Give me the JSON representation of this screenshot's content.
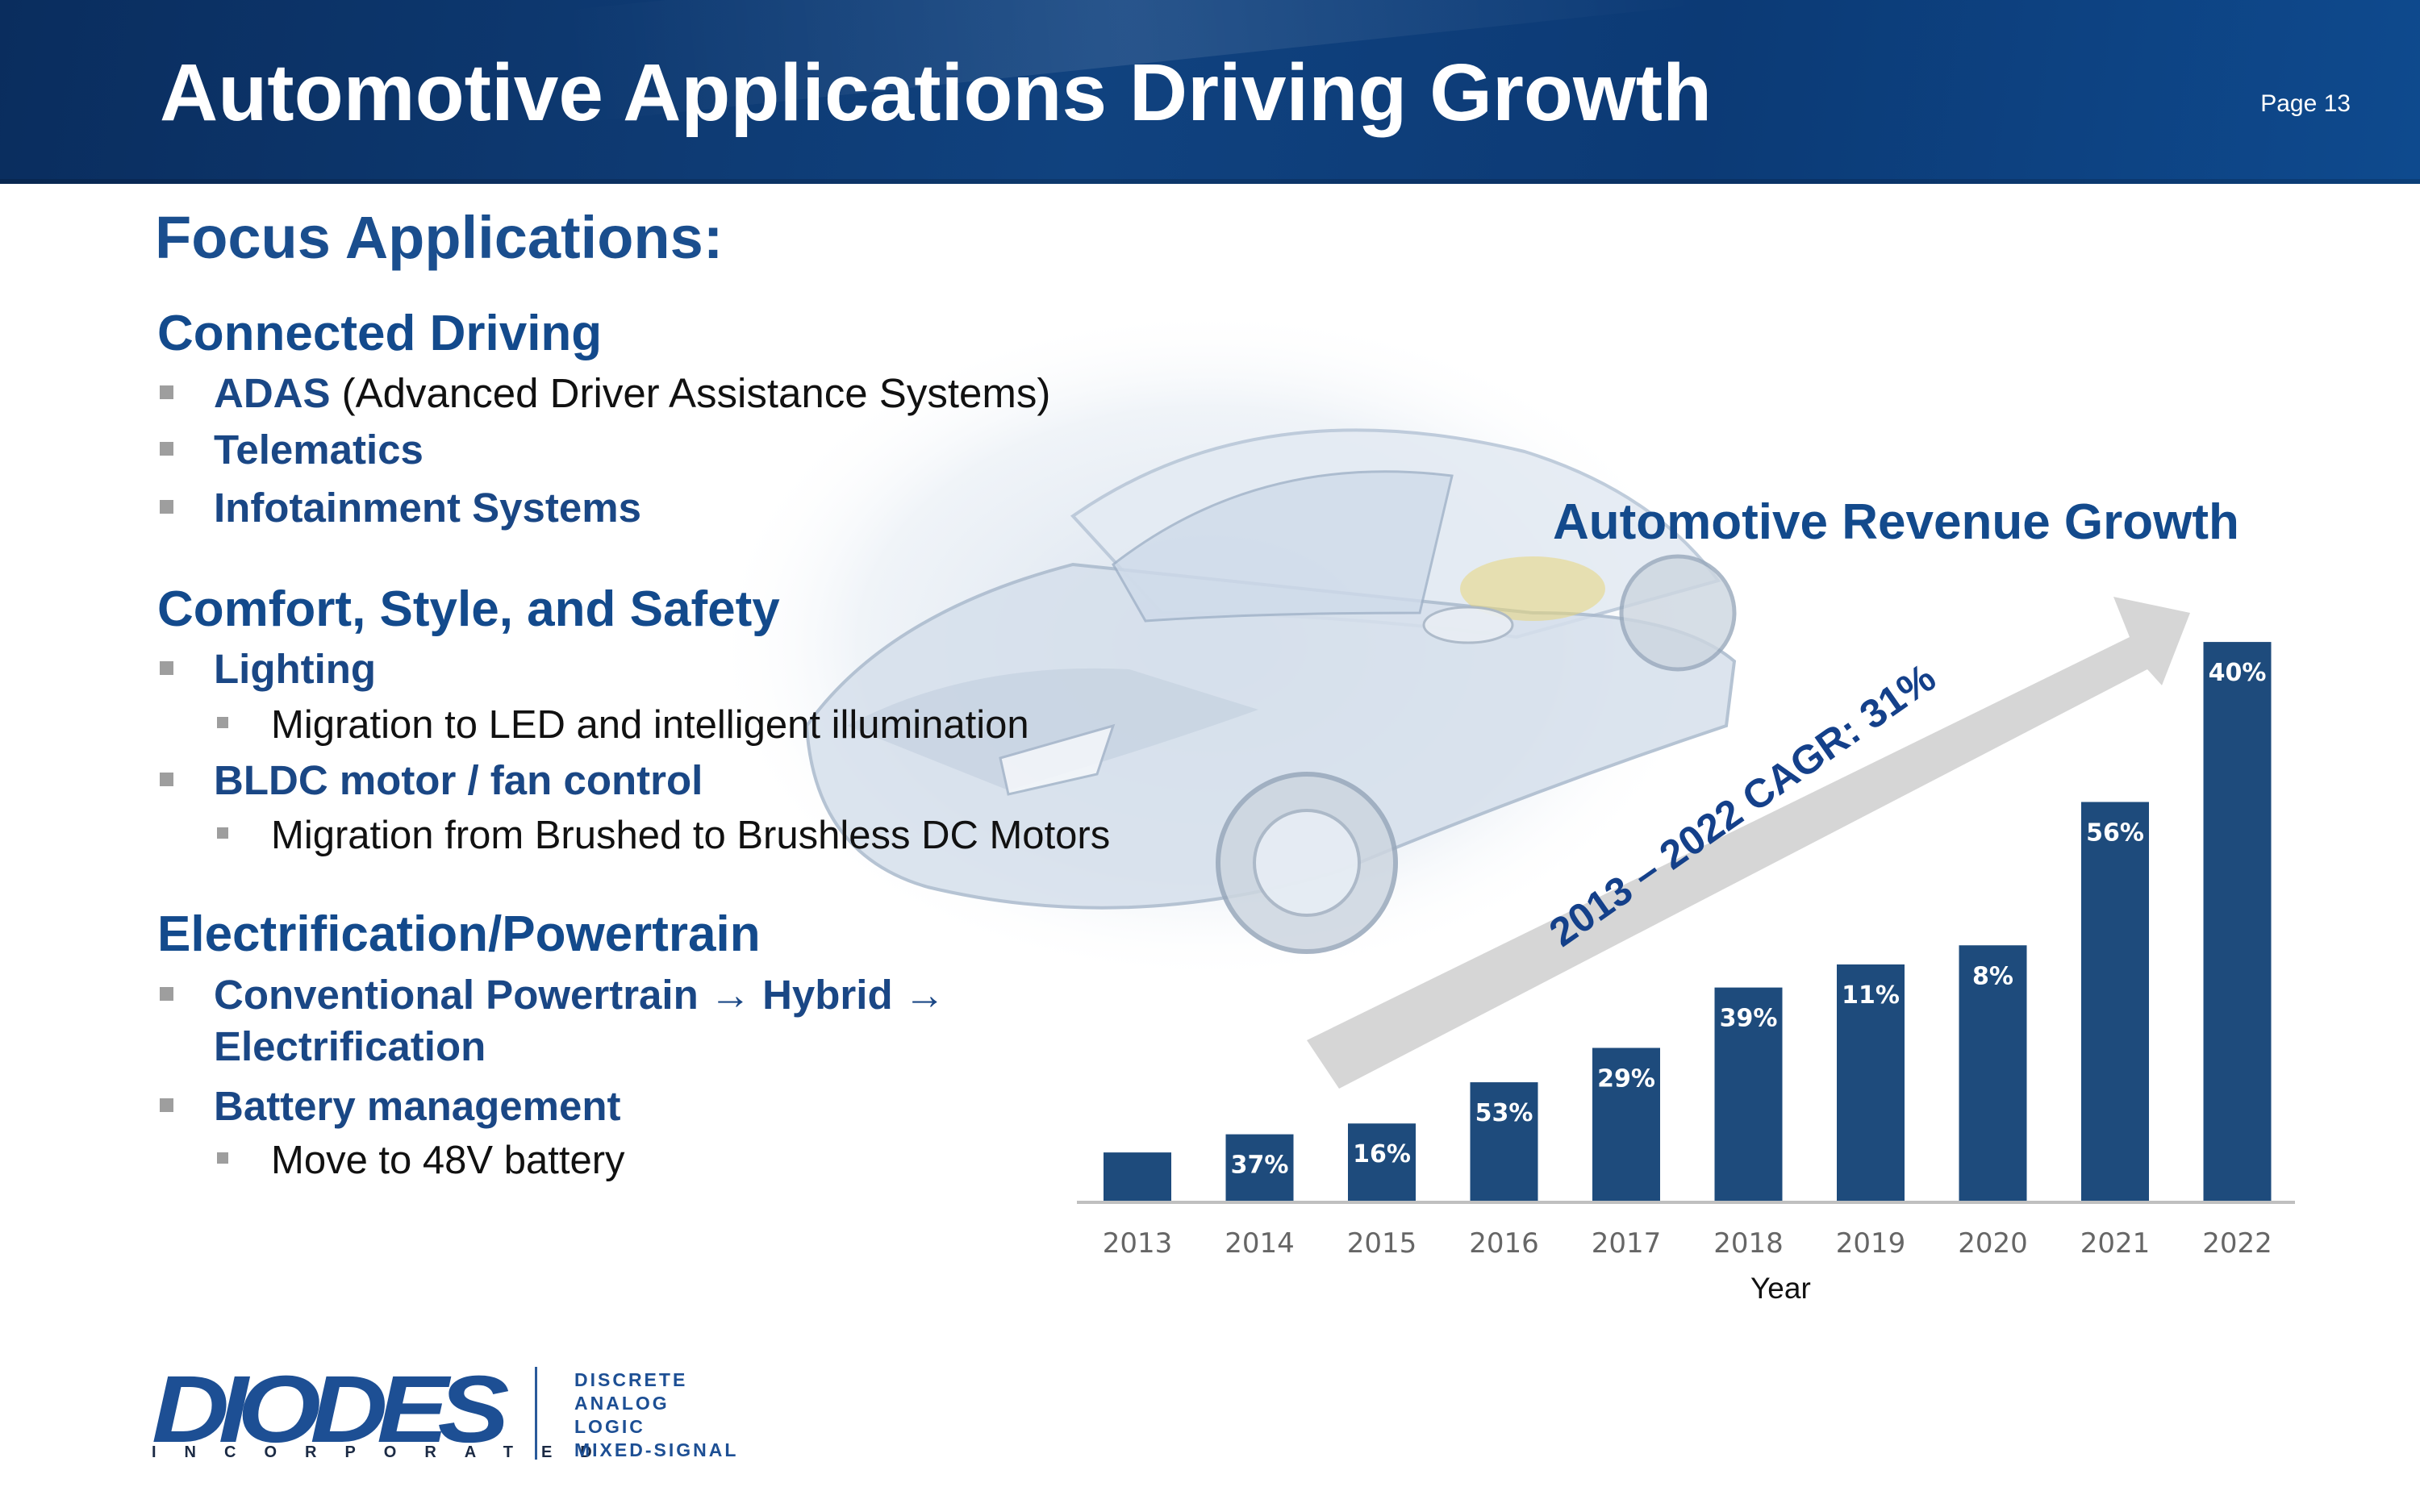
{
  "header": {
    "title": "Automotive Applications Driving Growth",
    "page": "Page 13"
  },
  "left": {
    "focus_title": "Focus Applications:",
    "sections": [
      {
        "title": "Connected Driving",
        "items": [
          {
            "bold": "ADAS",
            "plain": " (Advanced Driver Assistance Systems)"
          },
          {
            "bold": "Telematics"
          },
          {
            "bold": "Infotainment Systems"
          }
        ]
      },
      {
        "title": "Comfort, Style, and Safety",
        "items": [
          {
            "bold": "Lighting",
            "sub": "Migration to LED and intelligent illumination"
          },
          {
            "bold": "BLDC motor / fan control",
            "sub": "Migration from Brushed to Brushless DC Motors"
          }
        ]
      },
      {
        "title": "Electrification/Powertrain",
        "items": [
          {
            "bold_line1": "Conventional Powertrain → Hybrid →",
            "bold_line2": "Electrification"
          },
          {
            "bold": "Battery management",
            "sub": "Move to 48V battery"
          }
        ]
      }
    ]
  },
  "chart_data": {
    "type": "bar",
    "title": "Automotive Revenue Growth",
    "xlabel": "Year",
    "ylabel": "",
    "categories": [
      "2013",
      "2014",
      "2015",
      "2016",
      "2017",
      "2018",
      "2019",
      "2020",
      "2021",
      "2022"
    ],
    "values": [
      1.0,
      1.37,
      1.59,
      2.43,
      3.13,
      4.36,
      4.83,
      5.22,
      8.14,
      11.4
    ],
    "growth_labels": [
      "",
      "37%",
      "16%",
      "53%",
      "29%",
      "39%",
      "11%",
      "8%",
      "56%",
      "40%"
    ],
    "annotation": "2013 – 2022 CAGR: 31%",
    "ylim": [
      0,
      11.5
    ],
    "bar_color": "#1e4b7c",
    "grid": false
  },
  "logo": {
    "word": "DIODES",
    "sub": "INCORPORATED",
    "lines": [
      "DISCRETE",
      "ANALOG",
      "LOGIC",
      "MIXED-SIGNAL"
    ],
    "color": "#1d4f94"
  }
}
